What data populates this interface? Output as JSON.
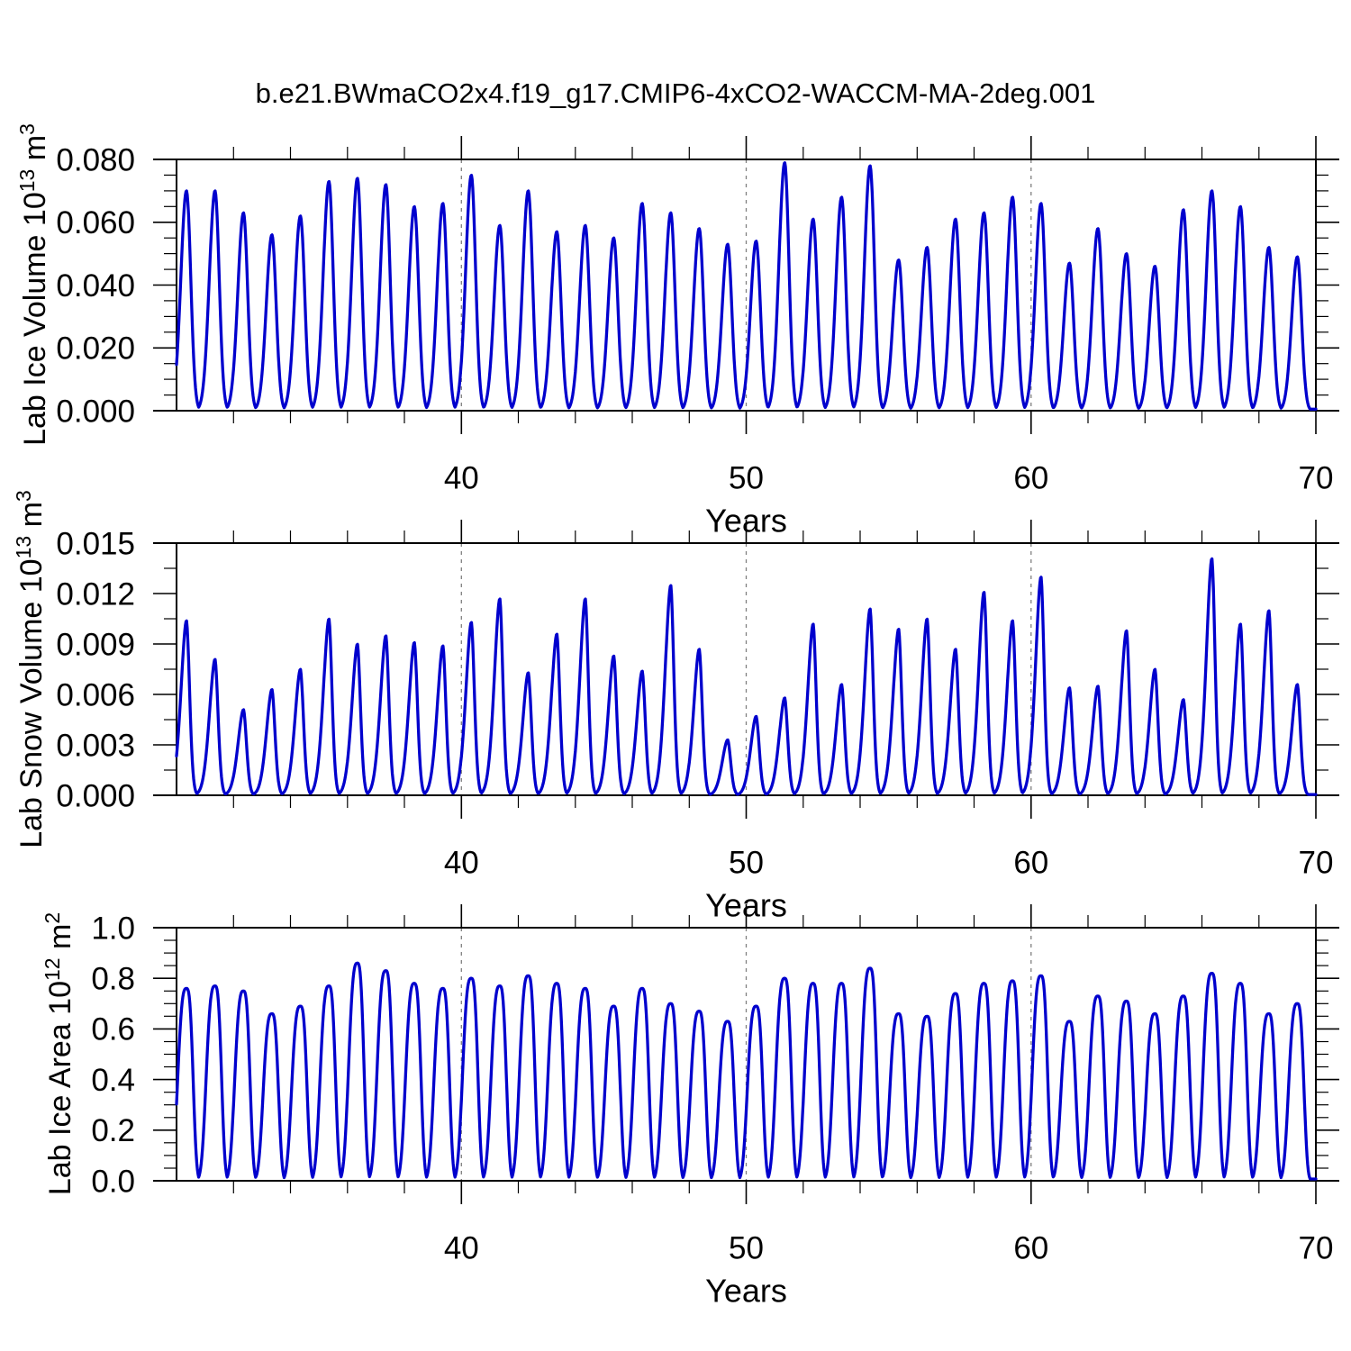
{
  "title": "b.e21.BWmaCO2x4.f19_g17.CMIP6-4xCO2-WACCM-MA-2deg.001",
  "colors": {
    "line": "#0000CD",
    "grid": "#808080",
    "frame": "#000000"
  },
  "chart_data": [
    {
      "id": "lab-ice-volume",
      "type": "line",
      "ylabel": {
        "base": "Lab Ice Volume 10",
        "exp": "13",
        "unit": " m",
        "unit_exp": "3"
      },
      "xlabel": "Years",
      "x_range": [
        30,
        70
      ],
      "y_range": [
        0,
        0.08
      ],
      "x_major_ticks": [
        40,
        50,
        60,
        70
      ],
      "x_tick_labels": [
        "40",
        "50",
        "60",
        "70"
      ],
      "x_minor_step": 2,
      "y_major_values": [
        0.0,
        0.02,
        0.04,
        0.06,
        0.08
      ],
      "y_tick_labels": [
        "0.000",
        "0.020",
        "0.040",
        "0.060",
        "0.080"
      ],
      "y_minor_step": 0.005,
      "gridlines_x": [
        40,
        50,
        60
      ],
      "grid_dashed": true,
      "peak_start_year": 30,
      "peak_offset": 0.35,
      "baseline": 0.0005,
      "shape": {
        "rise_sigma": 0.28,
        "fall_sigma": 0.21,
        "power": 2.0
      },
      "annual_peaks": [
        0.07,
        0.07,
        0.063,
        0.056,
        0.062,
        0.073,
        0.074,
        0.072,
        0.065,
        0.066,
        0.075,
        0.059,
        0.07,
        0.057,
        0.059,
        0.055,
        0.066,
        0.063,
        0.058,
        0.053,
        0.054,
        0.079,
        0.061,
        0.068,
        0.078,
        0.048,
        0.052,
        0.061,
        0.063,
        0.068,
        0.066,
        0.047,
        0.058,
        0.05,
        0.046,
        0.064,
        0.07,
        0.065,
        0.052,
        0.049
      ]
    },
    {
      "id": "lab-snow-volume",
      "type": "line",
      "ylabel": {
        "base": "Lab Snow Volume 10",
        "exp": "13",
        "unit": " m",
        "unit_exp": "3"
      },
      "xlabel": "Years",
      "x_range": [
        30,
        70
      ],
      "y_range": [
        0,
        0.015
      ],
      "x_major_ticks": [
        40,
        50,
        60,
        70
      ],
      "x_tick_labels": [
        "40",
        "50",
        "60",
        "70"
      ],
      "x_minor_step": 2,
      "y_major_values": [
        0.0,
        0.003,
        0.006,
        0.009,
        0.012,
        0.015
      ],
      "y_tick_labels": [
        "0.000",
        "0.003",
        "0.006",
        "0.009",
        "0.012",
        "0.015"
      ],
      "y_minor_step": 0.0015,
      "gridlines_x": [
        40,
        50,
        60
      ],
      "grid_dashed": true,
      "peak_start_year": 30,
      "peak_offset": 0.35,
      "baseline": 5e-05,
      "shape": {
        "rise_sigma": 0.28,
        "fall_sigma": 0.155,
        "power": 1.8
      },
      "annual_peaks": [
        0.0104,
        0.0081,
        0.0051,
        0.0063,
        0.0075,
        0.0105,
        0.009,
        0.0095,
        0.0091,
        0.0089,
        0.0103,
        0.0117,
        0.0073,
        0.0096,
        0.0117,
        0.0083,
        0.0074,
        0.0125,
        0.0087,
        0.0033,
        0.0047,
        0.0058,
        0.0102,
        0.0066,
        0.0111,
        0.0099,
        0.0105,
        0.0087,
        0.0121,
        0.0104,
        0.013,
        0.0064,
        0.0065,
        0.0098,
        0.0075,
        0.0057,
        0.0141,
        0.0102,
        0.011,
        0.0066
      ]
    },
    {
      "id": "lab-ice-area",
      "type": "line",
      "ylabel": {
        "base": "Lab Ice Area 10",
        "exp": "12",
        "unit": " m",
        "unit_exp": "2"
      },
      "xlabel": "Years",
      "x_range": [
        30,
        70
      ],
      "y_range": [
        0,
        1.0
      ],
      "x_major_ticks": [
        40,
        50,
        60,
        70
      ],
      "x_tick_labels": [
        "40",
        "50",
        "60",
        "70"
      ],
      "x_minor_step": 2,
      "y_major_values": [
        0.0,
        0.2,
        0.4,
        0.6,
        0.8,
        1.0
      ],
      "y_tick_labels": [
        "0.0",
        "0.2",
        "0.4",
        "0.6",
        "0.8",
        "1.0"
      ],
      "y_minor_step": 0.05,
      "gridlines_x": [
        40,
        50,
        60
      ],
      "grid_dashed": true,
      "peak_start_year": 30,
      "peak_offset": 0.35,
      "baseline": 0.007,
      "shape": {
        "rise_sigma": 0.36,
        "fall_sigma": 0.27,
        "power": 3.0
      },
      "annual_peaks": [
        0.76,
        0.77,
        0.75,
        0.66,
        0.69,
        0.77,
        0.86,
        0.83,
        0.78,
        0.76,
        0.8,
        0.77,
        0.81,
        0.78,
        0.76,
        0.69,
        0.76,
        0.7,
        0.67,
        0.63,
        0.69,
        0.8,
        0.78,
        0.78,
        0.84,
        0.66,
        0.65,
        0.74,
        0.78,
        0.79,
        0.81,
        0.63,
        0.73,
        0.71,
        0.66,
        0.73,
        0.82,
        0.78,
        0.66,
        0.7
      ]
    }
  ]
}
